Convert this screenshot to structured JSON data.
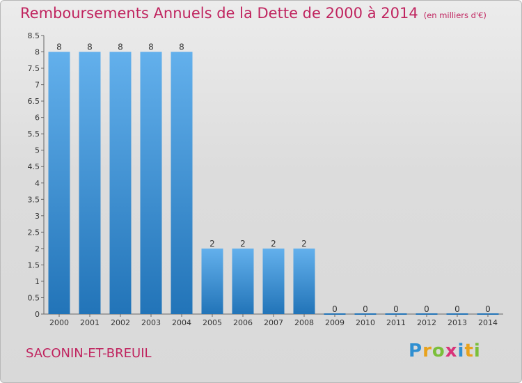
{
  "header": {
    "title": "Remboursements Annuels de la Dette de 2000 à 2014",
    "unit": "(en milliers d'€)"
  },
  "commune": "SACONIN-ET-BREUIL",
  "logo": {
    "letters": [
      "P",
      "r",
      "o",
      "x",
      "i",
      "t",
      "i"
    ],
    "colors": [
      "#2f8fd1",
      "#e8a21c",
      "#7bbf3a",
      "#d9337a",
      "#2f8fd1",
      "#e8a21c",
      "#7bbf3a"
    ]
  },
  "colors": {
    "title": "#c0245f",
    "bar_light": "#63b0ec",
    "bar_dark": "#2274b8",
    "axis": "#666666"
  },
  "chart_data": {
    "type": "bar",
    "title": "Remboursements Annuels de la Dette de 2000 à 2014",
    "ylabel": "",
    "xlabel": "",
    "categories": [
      "2000",
      "2001",
      "2002",
      "2003",
      "2004",
      "2005",
      "2006",
      "2007",
      "2008",
      "2009",
      "2010",
      "2011",
      "2012",
      "2013",
      "2014"
    ],
    "values": [
      8,
      8,
      8,
      8,
      8,
      2,
      2,
      2,
      2,
      0,
      0,
      0,
      0,
      0,
      0
    ],
    "data_labels": [
      "8",
      "8",
      "8",
      "8",
      "8",
      "2",
      "2",
      "2",
      "2",
      "0",
      "0",
      "0",
      "0",
      "0",
      "0"
    ],
    "ylim": [
      0,
      8.5
    ],
    "yticks": [
      "0",
      "0.5",
      "1",
      "1.5",
      "2",
      "2.5",
      "3",
      "3.5",
      "4",
      "4.5",
      "5",
      "5.5",
      "6",
      "6.5",
      "7",
      "7.5",
      "8",
      "8.5"
    ],
    "grid": false,
    "legend": "none"
  }
}
